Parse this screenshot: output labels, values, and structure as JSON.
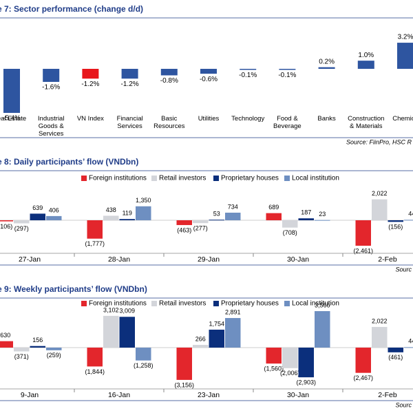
{
  "chart_data": [
    {
      "type": "bar",
      "title": "e 7: Sector performance (change d/d)",
      "categories": [
        "eal Estate",
        "Industrial Goods & Services",
        "VN Index",
        "Financial Services",
        "Basic Resources",
        "Utilities",
        "Technology",
        "Food & Beverage",
        "Banks",
        "Construction & Materials",
        "Chemica"
      ],
      "values": [
        -5.4,
        -1.6,
        -1.2,
        -1.2,
        -0.8,
        -0.6,
        -0.1,
        -0.1,
        0.2,
        1.0,
        3.2
      ],
      "value_labels": [
        "-5.4%",
        "-1.6%",
        "-1.2%",
        "-1.2%",
        "-0.8%",
        "-0.6%",
        "-0.1%",
        "-0.1%",
        "0.2%",
        "1.0%",
        "3.2%"
      ],
      "colors": [
        "#2e55a0",
        "#2e55a0",
        "#e8161b",
        "#2e55a0",
        "#2e55a0",
        "#2e55a0",
        "#2e55a0",
        "#2e55a0",
        "#2e55a0",
        "#2e55a0",
        "#2e55a0"
      ],
      "source": "Source: FiinPro, HSC R"
    },
    {
      "type": "grouped_bar",
      "title": "e 8: Daily participants’ flow (VNDbn)",
      "categories": [
        "27-Jan",
        "28-Jan",
        "29-Jan",
        "30-Jan",
        "2-Feb"
      ],
      "series": [
        {
          "name": "Foreign institutions",
          "color": "#e3262c",
          "values": [
            -106,
            -1777,
            -463,
            689,
            -2461
          ],
          "value_labels": [
            "(106)",
            "(1,777)",
            "(463)",
            "689",
            "(2,461)"
          ]
        },
        {
          "name": "Retail investors",
          "color": "#d3d5da",
          "values": [
            -297,
            438,
            -277,
            -708,
            2022
          ],
          "value_labels": [
            "(297)",
            "438",
            "(277)",
            "(708)",
            "2,022"
          ]
        },
        {
          "name": "Proprietary houses",
          "color": "#0b2f7c",
          "values": [
            639,
            119,
            53,
            187,
            -156
          ],
          "value_labels": [
            "639",
            "119",
            "53",
            "187",
            "(156)"
          ]
        },
        {
          "name": "Local institution",
          "color": "#6e8fc1",
          "values": [
            406,
            1350,
            734,
            23,
            44
          ],
          "value_labels": [
            "406",
            "1,350",
            "734",
            "23",
            "44"
          ]
        }
      ],
      "source": "Sourc"
    },
    {
      "type": "grouped_bar",
      "title": "e 9: Weekly participants’ flow (VNDbn)",
      "categories": [
        "9-Jan",
        "16-Jan",
        "23-Jan",
        "30-Jan",
        "2-Feb"
      ],
      "series": [
        {
          "name": "Foreign institutions",
          "color": "#e3262c",
          "values": [
            630,
            -1844,
            -3156,
            -1560,
            -2467
          ],
          "value_labels": [
            "630",
            "(1,844)",
            "(3,156)",
            "(1,560)",
            "(2,467)"
          ]
        },
        {
          "name": "Retail investors",
          "color": "#d3d5da",
          "values": [
            -371,
            3102,
            266,
            -2006,
            2022
          ],
          "value_labels": [
            "(371)",
            "3,102",
            "266",
            "(2,006)",
            "2,022"
          ]
        },
        {
          "name": "Proprietary houses",
          "color": "#0b2f7c",
          "values": [
            156,
            3009,
            1754,
            -2903,
            -461
          ],
          "value_labels": [
            "156",
            "3,009",
            "1,754",
            "(2,903)",
            "(461)"
          ]
        },
        {
          "name": "Local institution",
          "color": "#6e8fc1",
          "values": [
            -259,
            -1258,
            2891,
            3566,
            44
          ],
          "value_labels": [
            "(259)",
            "(1,258)",
            "2,891",
            "3,566",
            "44"
          ]
        }
      ],
      "source": "Sourc"
    }
  ]
}
